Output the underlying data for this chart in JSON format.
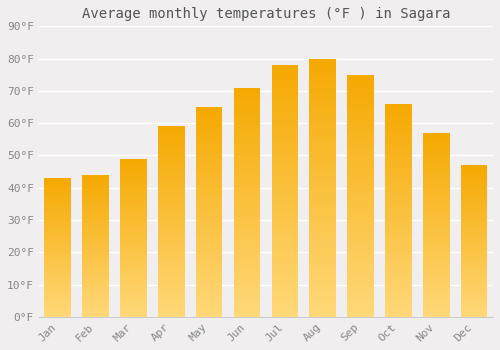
{
  "title": "Average monthly temperatures (°F ) in Sagara",
  "months": [
    "Jan",
    "Feb",
    "Mar",
    "Apr",
    "May",
    "Jun",
    "Jul",
    "Aug",
    "Sep",
    "Oct",
    "Nov",
    "Dec"
  ],
  "values": [
    43,
    44,
    49,
    59,
    65,
    71,
    78,
    80,
    75,
    66,
    57,
    47
  ],
  "bar_color_top": "#F5A800",
  "bar_color_bottom": "#FFD878",
  "ylim": [
    0,
    90
  ],
  "yticks": [
    0,
    10,
    20,
    30,
    40,
    50,
    60,
    70,
    80,
    90
  ],
  "ytick_labels": [
    "0°F",
    "10°F",
    "20°F",
    "30°F",
    "40°F",
    "50°F",
    "60°F",
    "70°F",
    "80°F",
    "90°F"
  ],
  "background_color": "#f0eeee",
  "plot_bg_color": "#f0eeee",
  "grid_color": "#ffffff",
  "title_fontsize": 10,
  "tick_fontsize": 8,
  "title_color": "#555555",
  "tick_color": "#888888"
}
